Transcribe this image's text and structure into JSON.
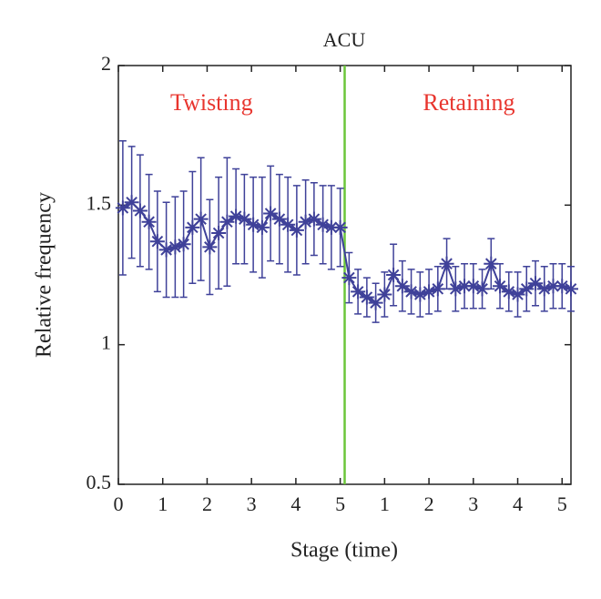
{
  "chart_data": {
    "type": "errorbar-line",
    "title": "ACU",
    "xlabel": "Stage (time)",
    "ylabel": "Relative frequency",
    "annotations": [
      {
        "text": "Twisting",
        "x": 2.1,
        "y": 1.86,
        "color": "#e8352e"
      },
      {
        "text": "Retaining",
        "x": 7.9,
        "y": 1.86,
        "color": "#e8352e"
      }
    ],
    "divider": 5.1,
    "divider_color": "#6cc63a",
    "xlim": [
      0,
      10.2
    ],
    "ylim": [
      0.5,
      2
    ],
    "xticks": [
      0,
      1,
      2,
      3,
      4,
      5,
      {
        "value": 6,
        "label": "1"
      },
      {
        "value": 7,
        "label": "2"
      },
      {
        "value": 8,
        "label": "3"
      },
      {
        "value": 9,
        "label": "4"
      },
      {
        "value": 10,
        "label": "5"
      }
    ],
    "yticks": [
      0.5,
      1,
      1.5,
      2
    ],
    "series": [
      {
        "color": "#3f4199",
        "x": [
          0.1,
          0.3,
          0.49,
          0.69,
          0.88,
          1.08,
          1.28,
          1.47,
          1.67,
          1.86,
          2.06,
          2.26,
          2.45,
          2.65,
          2.84,
          3.04,
          3.24,
          3.43,
          3.63,
          3.82,
          4.02,
          4.22,
          4.41,
          4.61,
          4.8,
          5.0,
          5.2,
          5.4,
          5.6,
          5.8,
          6.0,
          6.2,
          6.4,
          6.6,
          6.8,
          7.0,
          7.2,
          7.4,
          7.6,
          7.8,
          8.0,
          8.2,
          8.4,
          8.6,
          8.8,
          9.0,
          9.2,
          9.4,
          9.6,
          9.8,
          10.0,
          10.2
        ],
        "values": [
          1.49,
          1.51,
          1.48,
          1.44,
          1.37,
          1.34,
          1.35,
          1.36,
          1.42,
          1.45,
          1.35,
          1.4,
          1.44,
          1.46,
          1.45,
          1.43,
          1.42,
          1.47,
          1.45,
          1.43,
          1.41,
          1.44,
          1.45,
          1.43,
          1.42,
          1.42,
          1.24,
          1.19,
          1.17,
          1.15,
          1.18,
          1.25,
          1.21,
          1.19,
          1.18,
          1.19,
          1.2,
          1.29,
          1.2,
          1.21,
          1.21,
          1.2,
          1.29,
          1.21,
          1.19,
          1.18,
          1.2,
          1.22,
          1.2,
          1.21,
          1.21,
          1.2
        ],
        "errors": [
          0.24,
          0.2,
          0.2,
          0.17,
          0.18,
          0.17,
          0.18,
          0.19,
          0.2,
          0.22,
          0.17,
          0.2,
          0.23,
          0.17,
          0.16,
          0.17,
          0.18,
          0.17,
          0.16,
          0.17,
          0.16,
          0.15,
          0.13,
          0.14,
          0.15,
          0.14,
          0.09,
          0.08,
          0.07,
          0.07,
          0.08,
          0.11,
          0.09,
          0.08,
          0.08,
          0.08,
          0.08,
          0.09,
          0.08,
          0.08,
          0.08,
          0.07,
          0.09,
          0.08,
          0.07,
          0.08,
          0.08,
          0.08,
          0.08,
          0.08,
          0.08,
          0.08
        ]
      }
    ]
  }
}
